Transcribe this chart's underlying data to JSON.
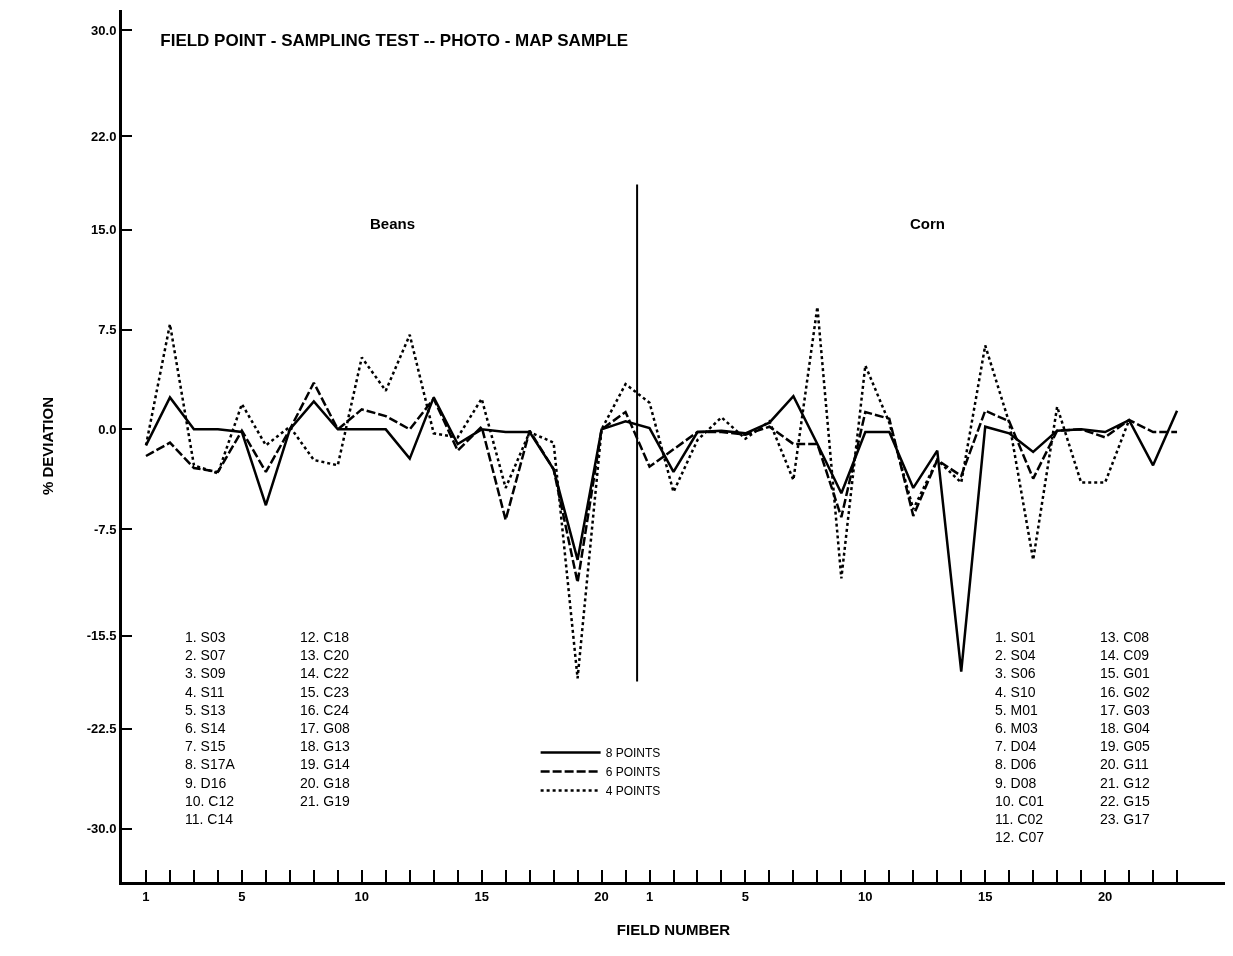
{
  "chart_data": {
    "type": "line",
    "title": "FIELD POINT - SAMPLING TEST -- PHOTO - MAP SAMPLE",
    "xlabel": "FIELD NUMBER",
    "ylabel": "% DEVIATION",
    "categories": [
      "1",
      null,
      null,
      null,
      "5",
      null,
      null,
      null,
      null,
      "10",
      null,
      null,
      null,
      null,
      "15",
      null,
      null,
      null,
      null,
      "20",
      null,
      "1",
      null,
      null,
      null,
      "5",
      null,
      null,
      null,
      null,
      "10",
      null,
      null,
      null,
      null,
      "15",
      null,
      null,
      null,
      null,
      "20",
      null,
      null,
      null
    ],
    "series": [
      {
        "name": "8 POINTS",
        "color": "#000000",
        "line_style": "solid",
        "values": [
          -1.2,
          2.4,
          0,
          0,
          -0.2,
          -5.7,
          0,
          2.1,
          0,
          0,
          0,
          -2.2,
          2.4,
          -1.1,
          0,
          -0.2,
          -0.2,
          -3.0,
          -9.8,
          0,
          0.6,
          0.1,
          -3.2,
          -0.2,
          -0.1,
          -0.3,
          0.5,
          2.5,
          -1.1,
          -4.8,
          -0.2,
          -0.2,
          -4.4,
          -1.6,
          -18.2,
          0.2,
          -0.3,
          -1.7,
          -0.1,
          0,
          -0.2,
          0.7,
          -2.7,
          1.4
        ]
      },
      {
        "name": "6 POINTS",
        "color": "#000000",
        "line_style": "dashed",
        "values": [
          -2.0,
          -1.0,
          -2.9,
          -3.2,
          -0.1,
          -3.2,
          0,
          3.5,
          0,
          1.5,
          1.0,
          0,
          2.3,
          -1.6,
          0.2,
          -6.8,
          -0.1,
          -3.0,
          -11.5,
          0,
          1.3,
          -2.8,
          -1.5,
          -0.2,
          -0.2,
          -0.4,
          0.2,
          -1.1,
          -1.1,
          -6.6,
          1.3,
          0.8,
          -6.5,
          -2.3,
          -3.5,
          1.4,
          0.6,
          -3.7,
          -0.1,
          0,
          -0.6,
          0.7,
          -0.2,
          -0.2
        ]
      },
      {
        "name": "4 POINTS",
        "color": "#000000",
        "line_style": "dotted",
        "values": [
          -1.2,
          7.9,
          -2.7,
          -3.3,
          1.9,
          -1.2,
          0.2,
          -2.3,
          -2.7,
          5.4,
          2.9,
          7.1,
          -0.3,
          -0.6,
          2.3,
          -4.4,
          -0.2,
          -1.0,
          -18.7,
          0,
          3.4,
          2.0,
          -4.7,
          -0.8,
          0.9,
          -0.7,
          0.6,
          -3.8,
          9.2,
          -11.2,
          4.8,
          0.5,
          -6.0,
          -2.3,
          -4.0,
          6.3,
          0.5,
          -9.8,
          1.7,
          -4.0,
          -4.0,
          0.7,
          null,
          null
        ]
      }
    ],
    "ylim": [
      -34,
      31.5
    ],
    "yticks": [
      {
        "value": 30,
        "label": "30.0"
      },
      {
        "value": 22,
        "label": "22.0"
      },
      {
        "value": 15,
        "label": "15.0"
      },
      {
        "value": 7.5,
        "label": "7.5"
      },
      {
        "value": 0,
        "label": "0.0"
      },
      {
        "value": -7.5,
        "label": "-7.5"
      },
      {
        "value": -15.5,
        "label": "-15.5"
      },
      {
        "value": -22.5,
        "label": "-22.5"
      },
      {
        "value": -30,
        "label": "-30.0"
      }
    ],
    "annotations": [
      "Beans",
      "Corn",
      "1. S03\n2. S07\n3. S09\n4. S11\n5. S13\n6. S14\n7. S15\n8. S17A\n9. D16\n10. C12\n11. C14",
      "12. C18\n13. C20\n14. C22\n15. C23\n16. C24\n17. G08\n18. G13\n19. G14\n20. G18\n21. G19",
      "1. S01\n2. S04\n3. S06\n4. S10\n5. M01\n6. M03\n7. D04\n8. D06\n9. D08\n10. C01\n11. C02\n12. C07",
      "13. C08\n14. C09\n15. G01\n16. G02\n17. G03\n18. G04\n19. G05\n20. G11\n21. G12\n22. G15\n23. G17"
    ],
    "legend": "bottom",
    "marker": "none",
    "grid": false
  }
}
